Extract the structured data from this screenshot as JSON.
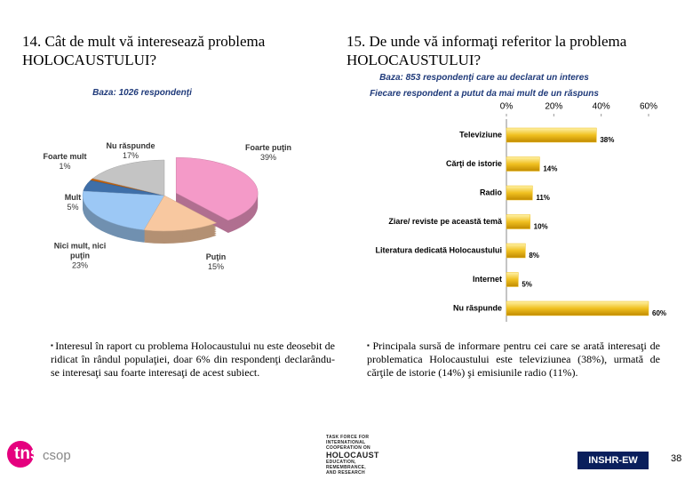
{
  "chart_data": [
    {
      "type": "pie",
      "title": "14. Cât de mult vă interesează problema HOLOCAUSTULUI?",
      "subtitle": "Baza: 1026 respondenţi",
      "categories": [
        "Foarte mult",
        "Mult",
        "Nici mult, nici puţin",
        "Puţin",
        "Foarte puţin",
        "Nu răspunde"
      ],
      "values": [
        1,
        5,
        23,
        15,
        39,
        17
      ],
      "value_labels": [
        "1%",
        "5%",
        "23%",
        "15%",
        "39%",
        "17%"
      ],
      "colors": [
        "#c0600c",
        "#3f6fa8",
        "#9cc8f5",
        "#f8c8a0",
        "#f49ac8",
        "#c4c4c4"
      ]
    },
    {
      "type": "hbar",
      "title": "15. De unde vă informaţi referitor la problema HOLOCAUSTULUI?",
      "subtitle": "Baza: 853 respondenţi care au declarat un interes",
      "note": "Fiecare respondent a putut da mai mult de un răspuns",
      "categories": [
        "Televiziune",
        "Cărţi de istorie",
        "Radio",
        "Ziare/ reviste pe această temă",
        "Literatura dedicată Holocaustului",
        "Internet",
        "Nu răspunde"
      ],
      "values": [
        38,
        14,
        11,
        10,
        8,
        5,
        60
      ],
      "value_labels": [
        "38%",
        "14%",
        "11%",
        "10%",
        "8%",
        "5%",
        "60%"
      ],
      "color": "#f0c020",
      "xlim": [
        0,
        60
      ],
      "xticks": [
        {
          "value": 0,
          "label": "0%"
        },
        {
          "value": 20,
          "label": "20%"
        },
        {
          "value": 40,
          "label": "40%"
        },
        {
          "value": 60,
          "label": "60%"
        }
      ]
    }
  ],
  "notes": [
    "Interesul în raport cu problema Holocaustului nu este deosebit de ridicat în rândul populaţiei, doar 6% din respondenţi declarându-se interesaţi sau foarte interesaţi de acest subiect.",
    "Principala sursă de informare pentru cei care se arată interesaţi de problematica Holocaustului este televiziunea (38%), urmată de cărţile de istorie (14%) şi emisiunile radio (11%)."
  ],
  "footer": {
    "logo_left": [
      "tns",
      "csop"
    ],
    "logo_center": [
      "TASK FORCE FOR",
      "INTERNATIONAL",
      "COOPERATION ON",
      "HOLOCAUST",
      "EDUCATION,",
      "REMEMBRANCE,",
      "AND RESEARCH"
    ],
    "badge": "INSHR-EW",
    "page_number": "38"
  }
}
